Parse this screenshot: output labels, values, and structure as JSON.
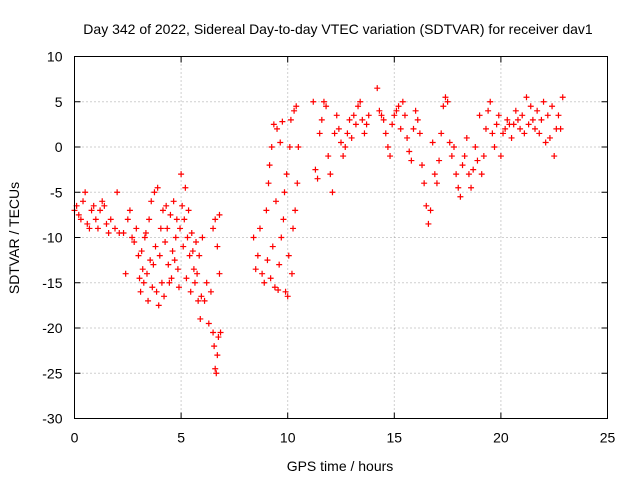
{
  "chart_data": {
    "type": "scatter",
    "title": "Day 342 of 2022, Sidereal Day-to-day VTEC variation (SDTVAR) for receiver dav1",
    "xlabel": "GPS time / hours",
    "ylabel": "SDTVAR / TECUs",
    "xlim": [
      0,
      25
    ],
    "ylim": [
      -30,
      10
    ],
    "xticks": [
      "0",
      "5",
      "10",
      "15",
      "20",
      "25"
    ],
    "yticks": [
      "10",
      "5",
      "0",
      "-5",
      "-10",
      "-15",
      "-20",
      "-25",
      "-30"
    ],
    "grid": true,
    "marker": "plus",
    "color": "#ff0000",
    "series": [
      {
        "name": "SDTVAR",
        "points": [
          [
            0.0,
            -7.0
          ],
          [
            0.1,
            -6.5
          ],
          [
            0.2,
            -7.5
          ],
          [
            0.3,
            -8.0
          ],
          [
            0.4,
            -6.0
          ],
          [
            0.5,
            -5.0
          ],
          [
            0.6,
            -8.5
          ],
          [
            0.7,
            -9.0
          ],
          [
            0.8,
            -7.0
          ],
          [
            0.9,
            -6.5
          ],
          [
            1.0,
            -8.0
          ],
          [
            1.1,
            -9.0
          ],
          [
            1.2,
            -7.0
          ],
          [
            1.3,
            -6.0
          ],
          [
            1.4,
            -6.5
          ],
          [
            1.5,
            -8.5
          ],
          [
            1.6,
            -9.5
          ],
          [
            1.7,
            -8.0
          ],
          [
            1.9,
            -9.0
          ],
          [
            2.0,
            -5.0
          ],
          [
            2.1,
            -9.5
          ],
          [
            2.3,
            -9.5
          ],
          [
            2.4,
            -14.0
          ],
          [
            2.5,
            -8.0
          ],
          [
            2.6,
            -7.0
          ],
          [
            2.7,
            -10.0
          ],
          [
            2.8,
            -10.5
          ],
          [
            2.9,
            -9.0
          ],
          [
            3.0,
            -12.0
          ],
          [
            3.05,
            -14.5
          ],
          [
            3.1,
            -16.0
          ],
          [
            3.15,
            -11.5
          ],
          [
            3.2,
            -13.5
          ],
          [
            3.25,
            -15.0
          ],
          [
            3.3,
            -10.0
          ],
          [
            3.35,
            -9.5
          ],
          [
            3.4,
            -14.0
          ],
          [
            3.45,
            -17.0
          ],
          [
            3.5,
            -8.0
          ],
          [
            3.55,
            -12.5
          ],
          [
            3.6,
            -6.0
          ],
          [
            3.65,
            -15.5
          ],
          [
            3.7,
            -13.0
          ],
          [
            3.75,
            -5.0
          ],
          [
            3.8,
            -11.0
          ],
          [
            3.85,
            -16.0
          ],
          [
            3.9,
            -4.5
          ],
          [
            3.95,
            -17.5
          ],
          [
            4.0,
            -12.0
          ],
          [
            4.05,
            -9.0
          ],
          [
            4.1,
            -15.0
          ],
          [
            4.15,
            -7.0
          ],
          [
            4.2,
            -16.5
          ],
          [
            4.25,
            -10.5
          ],
          [
            4.3,
            -6.5
          ],
          [
            4.35,
            -9.0
          ],
          [
            4.4,
            -13.0
          ],
          [
            4.45,
            -15.0
          ],
          [
            4.5,
            -7.5
          ],
          [
            4.55,
            -14.5
          ],
          [
            4.6,
            -11.5
          ],
          [
            4.65,
            -6.0
          ],
          [
            4.7,
            -12.5
          ],
          [
            4.75,
            -10.0
          ],
          [
            4.8,
            -8.0
          ],
          [
            4.85,
            -13.5
          ],
          [
            4.9,
            -15.5
          ],
          [
            4.95,
            -9.0
          ],
          [
            5.0,
            -3.0
          ],
          [
            5.05,
            -6.5
          ],
          [
            5.1,
            -11.0
          ],
          [
            5.15,
            -8.0
          ],
          [
            5.2,
            -4.5
          ],
          [
            5.25,
            -14.5
          ],
          [
            5.3,
            -10.0
          ],
          [
            5.35,
            -7.0
          ],
          [
            5.4,
            -12.0
          ],
          [
            5.45,
            -16.0
          ],
          [
            5.5,
            -9.5
          ],
          [
            5.55,
            -11.5
          ],
          [
            5.6,
            -13.5
          ],
          [
            5.65,
            -15.0
          ],
          [
            5.7,
            -10.5
          ],
          [
            5.75,
            -14.0
          ],
          [
            5.8,
            -17.0
          ],
          [
            5.85,
            -12.0
          ],
          [
            5.9,
            -19.0
          ],
          [
            5.95,
            -16.5
          ],
          [
            6.0,
            -10.0
          ],
          [
            6.1,
            -17.0
          ],
          [
            6.2,
            -15.0
          ],
          [
            6.3,
            -19.5
          ],
          [
            6.4,
            -16.0
          ],
          [
            6.5,
            -20.5
          ],
          [
            6.55,
            -22.0
          ],
          [
            6.6,
            -24.5
          ],
          [
            6.65,
            -25.0
          ],
          [
            6.7,
            -23.0
          ],
          [
            6.75,
            -21.0
          ],
          [
            6.8,
            -14.0
          ],
          [
            6.85,
            -20.5
          ],
          [
            6.5,
            -9.0
          ],
          [
            6.6,
            -8.0
          ],
          [
            6.7,
            -11.0
          ],
          [
            6.8,
            -7.5
          ],
          [
            8.4,
            -10.0
          ],
          [
            8.5,
            -13.5
          ],
          [
            8.6,
            -12.0
          ],
          [
            8.7,
            -9.0
          ],
          [
            8.8,
            -14.0
          ],
          [
            8.9,
            -15.0
          ],
          [
            9.0,
            -7.0
          ],
          [
            9.05,
            -12.5
          ],
          [
            9.1,
            -4.0
          ],
          [
            9.15,
            -2.0
          ],
          [
            9.2,
            -14.5
          ],
          [
            9.25,
            0.0
          ],
          [
            9.3,
            -11.0
          ],
          [
            9.35,
            2.5
          ],
          [
            9.4,
            -15.5
          ],
          [
            9.45,
            -6.0
          ],
          [
            9.5,
            2.0
          ],
          [
            9.55,
            -15.8
          ],
          [
            9.6,
            -13.0
          ],
          [
            9.65,
            0.5
          ],
          [
            9.7,
            -10.0
          ],
          [
            9.75,
            2.8
          ],
          [
            9.8,
            -8.0
          ],
          [
            9.85,
            -5.0
          ],
          [
            9.9,
            -16.0
          ],
          [
            9.95,
            -3.0
          ],
          [
            10.0,
            -16.5
          ],
          [
            10.05,
            -12.0
          ],
          [
            10.1,
            0.0
          ],
          [
            10.15,
            3.0
          ],
          [
            10.2,
            -14.0
          ],
          [
            10.25,
            -9.0
          ],
          [
            10.3,
            4.0
          ],
          [
            10.35,
            -7.0
          ],
          [
            10.4,
            4.5
          ],
          [
            10.45,
            -4.0
          ],
          [
            10.5,
            0.0
          ],
          [
            11.2,
            5.0
          ],
          [
            11.3,
            -2.5
          ],
          [
            11.4,
            -3.5
          ],
          [
            11.5,
            1.5
          ],
          [
            11.6,
            3.0
          ],
          [
            11.7,
            5.0
          ],
          [
            11.8,
            4.5
          ],
          [
            11.9,
            -1.0
          ],
          [
            12.0,
            -3.0
          ],
          [
            12.1,
            -5.0
          ],
          [
            12.2,
            1.5
          ],
          [
            12.3,
            3.5
          ],
          [
            12.4,
            2.0
          ],
          [
            12.5,
            0.5
          ],
          [
            12.6,
            -1.0
          ],
          [
            12.7,
            0.0
          ],
          [
            12.8,
            1.5
          ],
          [
            12.9,
            3.0
          ],
          [
            13.0,
            1.0
          ],
          [
            13.1,
            3.5
          ],
          [
            13.2,
            2.5
          ],
          [
            13.3,
            4.5
          ],
          [
            13.4,
            5.0
          ],
          [
            13.5,
            3.0
          ],
          [
            13.6,
            1.5
          ],
          [
            13.7,
            2.5
          ],
          [
            13.8,
            3.5
          ],
          [
            14.2,
            6.5
          ],
          [
            14.3,
            4.0
          ],
          [
            14.4,
            3.5
          ],
          [
            14.5,
            3.0
          ],
          [
            14.6,
            1.5
          ],
          [
            14.7,
            0.0
          ],
          [
            14.8,
            -1.0
          ],
          [
            14.9,
            2.5
          ],
          [
            15.0,
            3.5
          ],
          [
            15.1,
            4.0
          ],
          [
            15.2,
            4.5
          ],
          [
            15.3,
            2.0
          ],
          [
            15.4,
            5.0
          ],
          [
            15.5,
            3.5
          ],
          [
            15.6,
            1.0
          ],
          [
            15.7,
            -0.5
          ],
          [
            15.8,
            -1.5
          ],
          [
            15.9,
            2.0
          ],
          [
            16.0,
            4.0
          ],
          [
            16.1,
            3.0
          ],
          [
            16.2,
            1.5
          ],
          [
            16.3,
            -2.0
          ],
          [
            16.4,
            -4.0
          ],
          [
            16.5,
            -6.5
          ],
          [
            16.6,
            -8.5
          ],
          [
            16.7,
            -7.0
          ],
          [
            16.8,
            0.5
          ],
          [
            16.9,
            -3.0
          ],
          [
            17.0,
            -4.0
          ],
          [
            17.1,
            -1.5
          ],
          [
            17.2,
            1.5
          ],
          [
            17.3,
            4.5
          ],
          [
            17.4,
            5.5
          ],
          [
            17.5,
            5.0
          ],
          [
            17.6,
            0.5
          ],
          [
            17.7,
            -1.0
          ],
          [
            17.8,
            0.0
          ],
          [
            17.9,
            -3.0
          ],
          [
            18.0,
            -4.5
          ],
          [
            18.1,
            -5.5
          ],
          [
            18.2,
            -2.0
          ],
          [
            18.3,
            -1.0
          ],
          [
            18.4,
            1.0
          ],
          [
            18.5,
            -3.0
          ],
          [
            18.6,
            -4.5
          ],
          [
            18.7,
            -2.5
          ],
          [
            18.8,
            0.0
          ],
          [
            18.9,
            -1.5
          ],
          [
            19.0,
            3.5
          ],
          [
            19.1,
            -3.0
          ],
          [
            19.2,
            -1.0
          ],
          [
            19.3,
            2.0
          ],
          [
            19.4,
            4.0
          ],
          [
            19.5,
            5.0
          ],
          [
            19.6,
            1.5
          ],
          [
            19.7,
            0.0
          ],
          [
            19.8,
            2.5
          ],
          [
            19.9,
            3.5
          ],
          [
            20.0,
            -1.0
          ],
          [
            20.1,
            1.5
          ],
          [
            20.2,
            2.0
          ],
          [
            20.3,
            3.0
          ],
          [
            20.4,
            2.5
          ],
          [
            20.5,
            1.0
          ],
          [
            20.6,
            2.5
          ],
          [
            20.7,
            4.0
          ],
          [
            20.8,
            3.0
          ],
          [
            20.9,
            2.0
          ],
          [
            21.0,
            3.5
          ],
          [
            21.1,
            1.5
          ],
          [
            21.2,
            5.5
          ],
          [
            21.3,
            2.5
          ],
          [
            21.4,
            4.5
          ],
          [
            21.5,
            3.0
          ],
          [
            21.6,
            2.0
          ],
          [
            21.7,
            4.0
          ],
          [
            21.8,
            1.5
          ],
          [
            21.9,
            3.0
          ],
          [
            22.0,
            5.0
          ],
          [
            22.1,
            0.5
          ],
          [
            22.2,
            3.5
          ],
          [
            22.3,
            1.0
          ],
          [
            22.4,
            4.5
          ],
          [
            22.5,
            -1.0
          ],
          [
            22.6,
            2.0
          ],
          [
            22.7,
            3.5
          ],
          [
            22.8,
            2.0
          ],
          [
            22.9,
            5.5
          ]
        ]
      }
    ]
  }
}
